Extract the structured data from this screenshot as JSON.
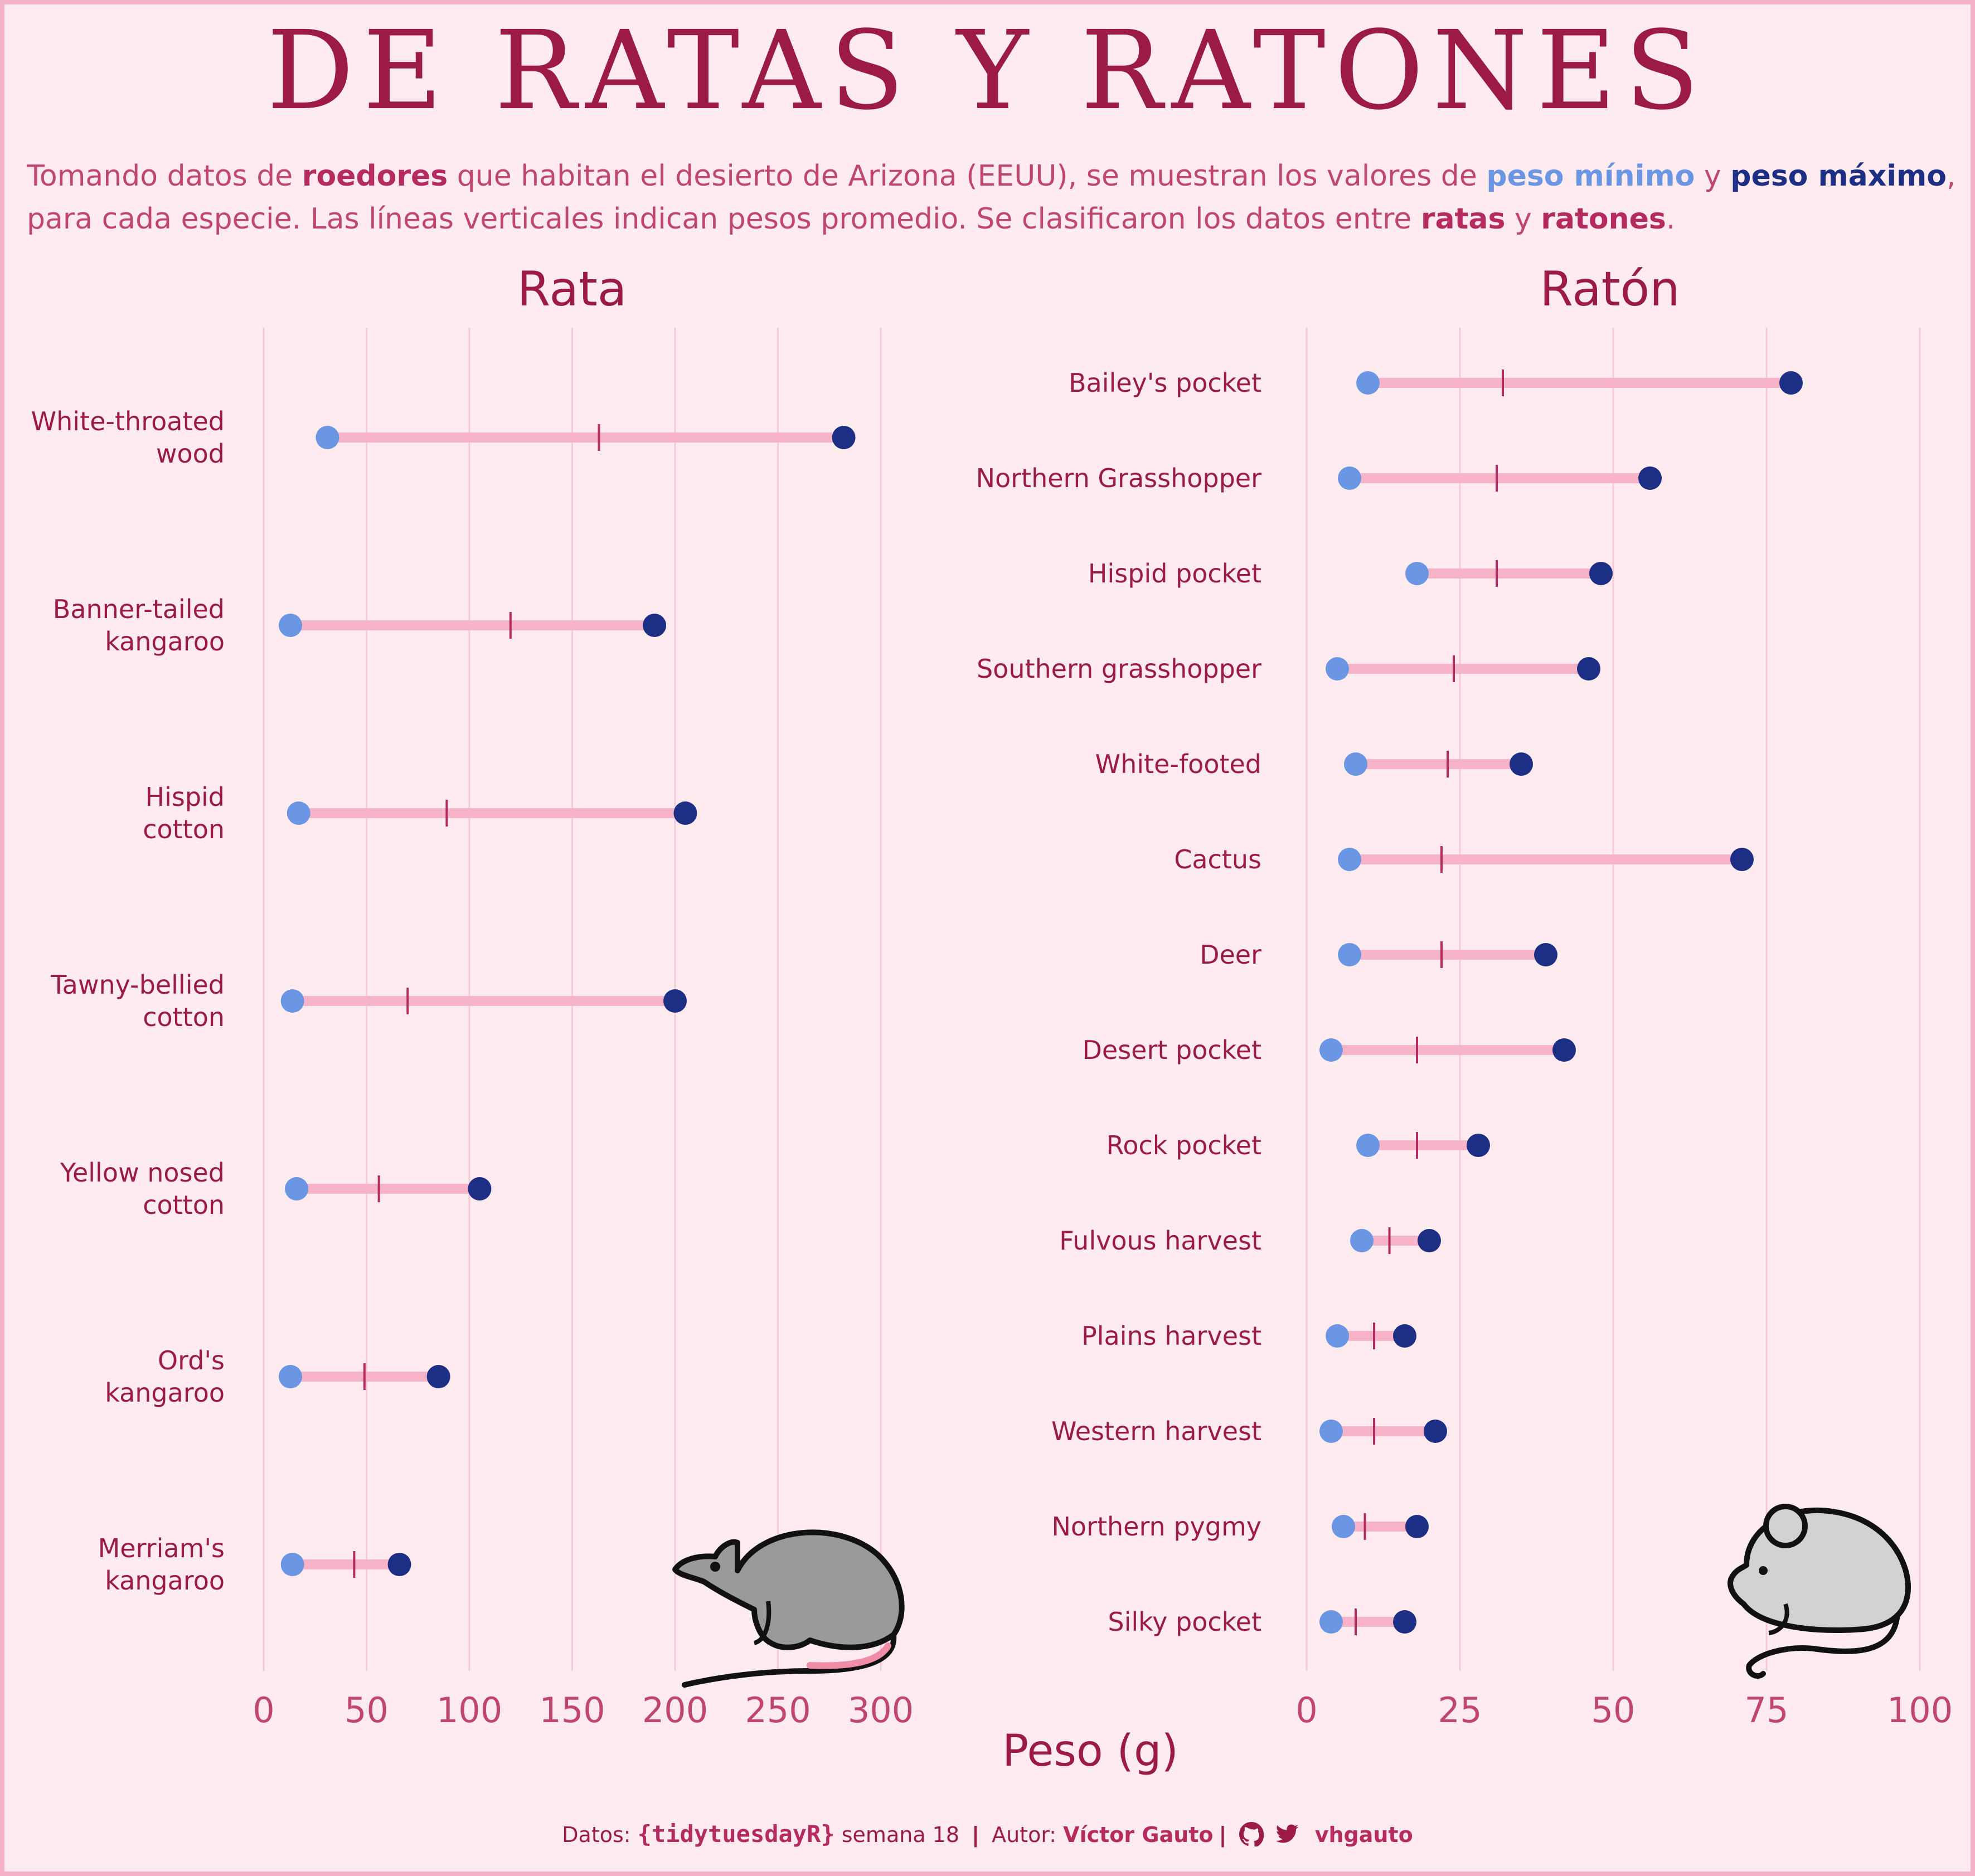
{
  "title": "DE RATAS Y RATONES",
  "subtitle": {
    "p1": "Tomando datos de ",
    "rodents": "roedores",
    "p2": " que habitan el desierto de Arizona (EEUU), se muestran los valores de ",
    "min": "peso mínimo",
    "and1": " y ",
    "max": "peso máximo",
    "p3": ", para cada especie. Las líneas verticales indican pesos promedio. Se clasificaron los datos entre ",
    "rats": "ratas",
    "and2": " y ",
    "mice": "ratones",
    "p4": "."
  },
  "colors": {
    "background": "#fdebf0",
    "title": "#9b1a46",
    "segment": "#f7b3c8",
    "min_point": "#6a96e3",
    "max_point": "#1c2f85",
    "mean_tick": "#b52b5f",
    "grid": "#f6c9d7",
    "tick_label": "#c0456f"
  },
  "x_axis_label": "Peso (g)",
  "chart_data": [
    {
      "type": "dumbbell",
      "title": "Rata",
      "xlim": [
        0,
        300
      ],
      "xticks": [
        0,
        50,
        100,
        150,
        200,
        250,
        300
      ],
      "grid": true,
      "categories": [
        "White-throated wood",
        "Banner-tailed kangaroo",
        "Hispid cotton",
        "Tawny-bellied cotton",
        "Yellow nosed cotton",
        "Ord's kangaroo",
        "Merriam's kangaroo"
      ],
      "labels": [
        [
          "White-throated",
          "wood"
        ],
        [
          "Banner-tailed",
          "kangaroo"
        ],
        [
          "Hispid",
          "cotton"
        ],
        [
          "Tawny-bellied",
          "cotton"
        ],
        [
          "Yellow nosed",
          "cotton"
        ],
        [
          "Ord's",
          "kangaroo"
        ],
        [
          "Merriam's",
          "kangaroo"
        ]
      ],
      "min": [
        31,
        13,
        17,
        14,
        16,
        13,
        14
      ],
      "max": [
        282,
        190,
        205,
        200,
        105,
        85,
        66
      ],
      "mean": [
        163,
        120,
        89,
        70,
        56,
        49,
        44
      ]
    },
    {
      "type": "dumbbell",
      "title": "Ratón",
      "xlim": [
        0,
        100
      ],
      "xticks": [
        0,
        25,
        50,
        75,
        100
      ],
      "grid": true,
      "categories": [
        "Bailey's pocket",
        "Northern Grasshopper",
        "Hispid pocket",
        "Southern grasshopper",
        "White-footed",
        "Cactus",
        "Deer",
        "Desert pocket",
        "Rock pocket",
        "Fulvous harvest",
        "Plains harvest",
        "Western harvest",
        "Northern pygmy",
        "Silky pocket"
      ],
      "labels": [
        [
          "Bailey's pocket"
        ],
        [
          "Northern Grasshopper"
        ],
        [
          "Hispid pocket"
        ],
        [
          "Southern grasshopper"
        ],
        [
          "White-footed"
        ],
        [
          "Cactus"
        ],
        [
          "Deer"
        ],
        [
          "Desert pocket"
        ],
        [
          "Rock pocket"
        ],
        [
          "Fulvous harvest"
        ],
        [
          "Plains harvest"
        ],
        [
          "Western harvest"
        ],
        [
          "Northern pygmy"
        ],
        [
          "Silky pocket"
        ]
      ],
      "min": [
        10,
        7,
        18,
        5,
        8,
        7,
        7,
        4,
        10,
        9,
        5,
        4,
        6,
        4
      ],
      "max": [
        79,
        56,
        48,
        46,
        35,
        71,
        39,
        42,
        28,
        20,
        16,
        21,
        18,
        16
      ],
      "mean": [
        32,
        31,
        31,
        24,
        23,
        22,
        22,
        18,
        18,
        13.5,
        11,
        11,
        9.5,
        8
      ]
    }
  ],
  "footer": {
    "datos_label": "Datos: ",
    "source": "{tidytuesdayR}",
    "week": " semana 18 ",
    "sep1": "|",
    "autor_label": " Autor: ",
    "author": "Víctor Gauto",
    "sep2": "|",
    "github_icon": "github-icon",
    "twitter_icon": "twitter-icon",
    "handle": "vhgauto"
  }
}
